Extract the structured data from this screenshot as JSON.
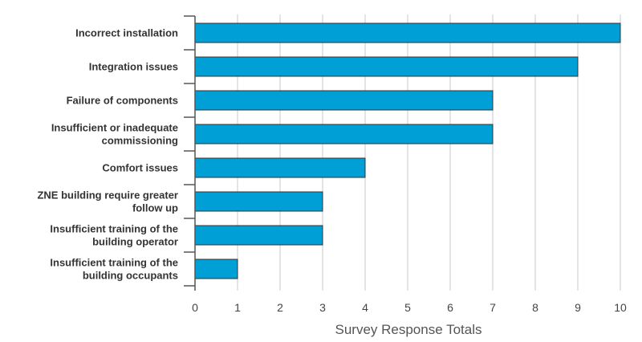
{
  "chart_data": {
    "type": "bar",
    "orientation": "horizontal",
    "categories": [
      [
        "Incorrect installation"
      ],
      [
        "Integration issues"
      ],
      [
        "Failure of components"
      ],
      [
        "Insufficient or inadequate",
        "commissioning"
      ],
      [
        "Comfort issues"
      ],
      [
        "ZNE building require greater",
        "follow up"
      ],
      [
        "Insufficient training of the",
        "building operator"
      ],
      [
        "Insufficient training of the",
        "building occupants"
      ]
    ],
    "values": [
      10,
      9,
      7,
      7,
      4,
      3,
      3,
      1
    ],
    "title": "",
    "xlabel": "Survey Response Totals",
    "ylabel": "",
    "xlim": [
      0,
      10
    ],
    "xticks": [
      "0",
      "1",
      "2",
      "3",
      "4",
      "5",
      "6",
      "7",
      "8",
      "9",
      "10"
    ],
    "grid": "vertical",
    "legend": "none",
    "colors": {
      "bar": "#009fd6",
      "bar_edge": "#333333",
      "grid": "#c8c8c8",
      "axis": "#555555"
    }
  }
}
